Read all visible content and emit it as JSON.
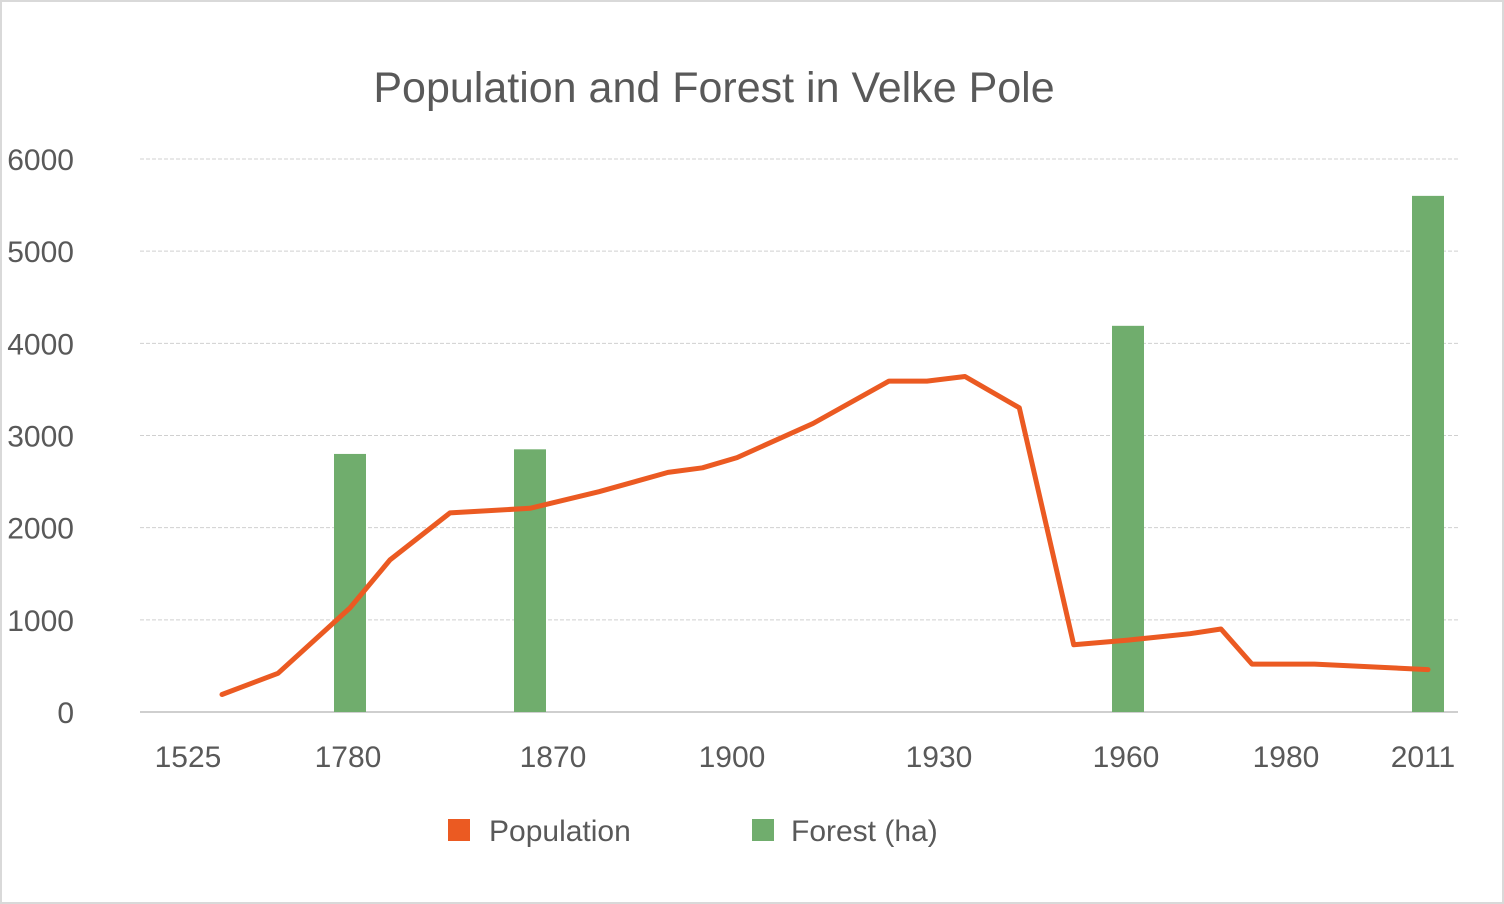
{
  "chart_data": {
    "type": "bar+line",
    "title": "Population and Forest in Velke Pole",
    "ylim": [
      0,
      6000
    ],
    "yticks": [
      0,
      1000,
      2000,
      3000,
      4000,
      5000,
      6000
    ],
    "grid": true,
    "legend_position": "bottom",
    "x_tick_labels": [
      "1525",
      "1780",
      "1870",
      "1900",
      "1930",
      "1960",
      "1980",
      "2011"
    ],
    "series": [
      {
        "name": "Population",
        "type": "line",
        "color": "#eb5a22",
        "points": [
          {
            "x": 1525,
            "y": 190
          },
          {
            "x": 1720,
            "y": 420
          },
          {
            "x": 1780,
            "y": 1130
          },
          {
            "x": 1800,
            "y": 1650
          },
          {
            "x": 1830,
            "y": 2160
          },
          {
            "x": 1870,
            "y": 2210
          },
          {
            "x": 1880,
            "y": 2390
          },
          {
            "x": 1890,
            "y": 2600
          },
          {
            "x": 1895,
            "y": 2650
          },
          {
            "x": 1900,
            "y": 2760
          },
          {
            "x": 1910,
            "y": 3130
          },
          {
            "x": 1920,
            "y": 3590
          },
          {
            "x": 1925,
            "y": 3590
          },
          {
            "x": 1930,
            "y": 3640
          },
          {
            "x": 1940,
            "y": 3300
          },
          {
            "x": 1950,
            "y": 730
          },
          {
            "x": 1960,
            "y": 780
          },
          {
            "x": 1970,
            "y": 850
          },
          {
            "x": 1975,
            "y": 900
          },
          {
            "x": 1980,
            "y": 520
          },
          {
            "x": 1991,
            "y": 520
          },
          {
            "x": 2011,
            "y": 460
          }
        ]
      },
      {
        "name": "Forest (ha)",
        "type": "bar",
        "color": "#70ad6d",
        "points": [
          {
            "x": 1780,
            "y": 2800
          },
          {
            "x": 1870,
            "y": 2850
          },
          {
            "x": 1960,
            "y": 4190
          },
          {
            "x": 2011,
            "y": 5600
          }
        ]
      }
    ]
  }
}
